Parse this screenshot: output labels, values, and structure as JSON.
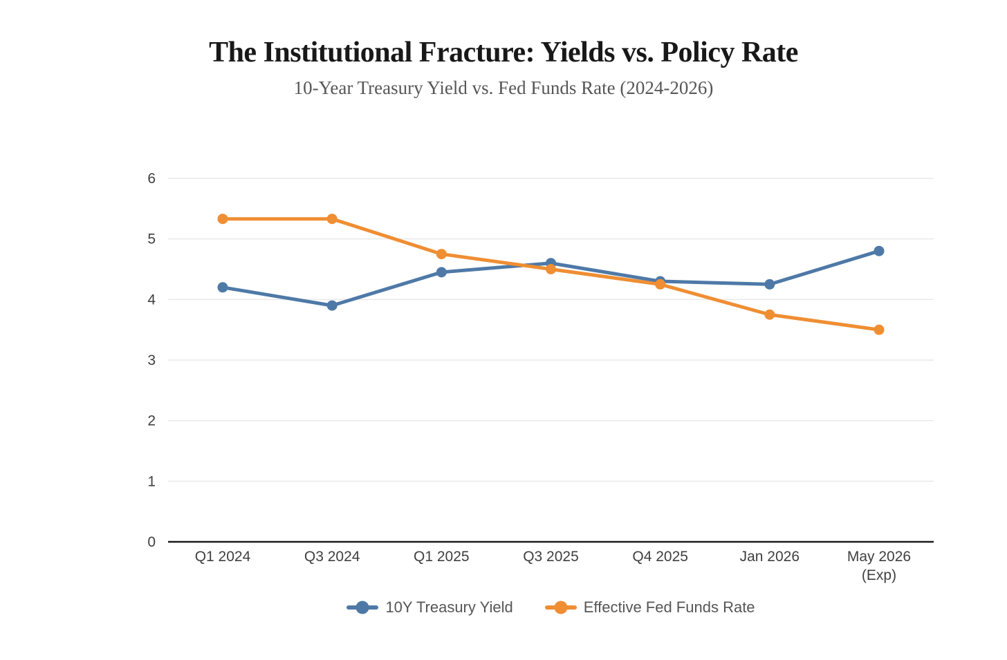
{
  "header": {
    "title": "The Institutional Fracture: Yields vs. Policy Rate",
    "subtitle": "10-Year Treasury Yield vs. Fed Funds Rate (2024-2026)"
  },
  "chart_data": {
    "type": "line",
    "title": "The Institutional Fracture: Yields vs. Policy Rate",
    "subtitle": "10-Year Treasury Yield vs. Fed Funds Rate (2024-2026)",
    "categories": [
      "Q1 2024",
      "Q3 2024",
      "Q1 2025",
      "Q3 2025",
      "Q4 2025",
      "Jan 2026",
      "May 2026\n(Exp)"
    ],
    "series": [
      {
        "name": "10Y Treasury Yield",
        "color": "#4E79A7",
        "values": [
          4.2,
          3.9,
          4.45,
          4.6,
          4.3,
          4.25,
          4.8
        ]
      },
      {
        "name": "Effective Fed Funds Rate",
        "color": "#EF8E33",
        "values": [
          5.33,
          5.33,
          4.75,
          4.5,
          4.25,
          3.75,
          3.5
        ]
      }
    ],
    "xlabel": "",
    "ylabel": "",
    "ylim": [
      0,
      6
    ],
    "yticks": [
      0,
      1,
      2,
      3,
      4,
      5,
      6
    ],
    "grid": "horizontal",
    "legend_position": "bottom",
    "colors": {
      "axis_line": "#1a1a1a",
      "gridline": "#e9e9e9",
      "tick_label": "#3f3f3f",
      "legend_text": "#555555",
      "background": "#ffffff"
    }
  }
}
